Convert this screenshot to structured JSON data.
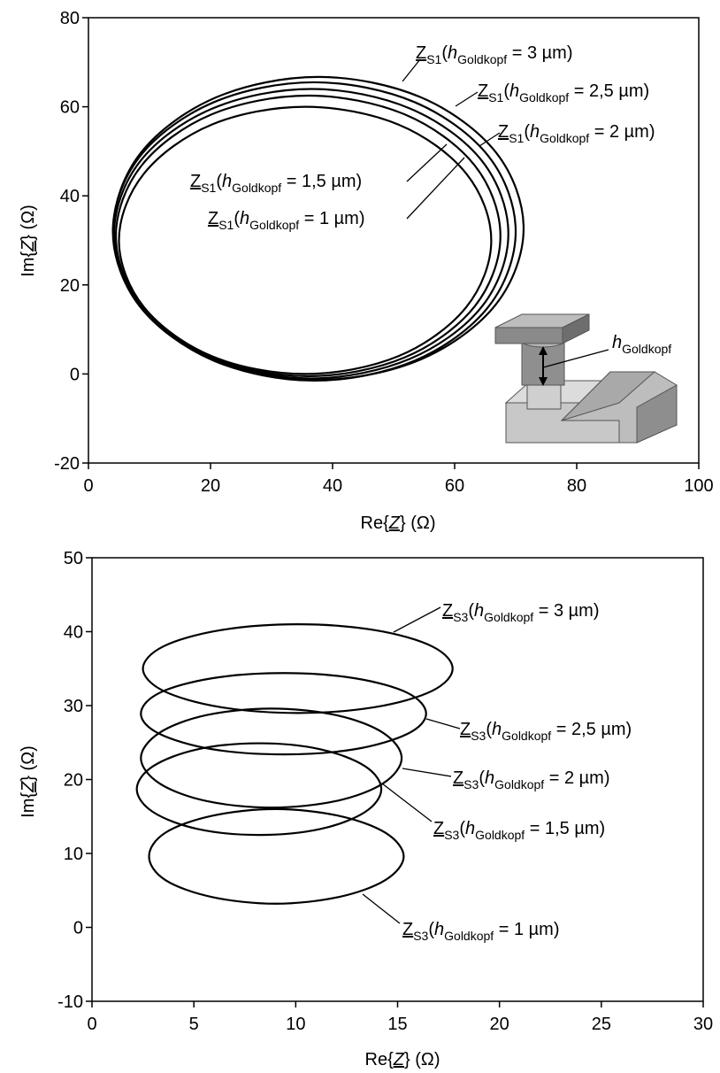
{
  "chart_data": [
    {
      "type": "line",
      "x_label": [
        "Re{",
        "Z",
        "}  (Ω)"
      ],
      "y_label": [
        "Im{",
        "Z",
        "}  (Ω)"
      ],
      "xlim": [
        0,
        100
      ],
      "ylim": [
        -20,
        80
      ],
      "xticks": [
        0,
        20,
        40,
        60,
        80,
        100
      ],
      "yticks": [
        -20,
        0,
        20,
        40,
        60,
        80
      ],
      "inset_label": [
        "h",
        "Goldkopf"
      ],
      "series": [
        {
          "name": [
            "Z",
            "S1",
            "(",
            "h",
            "Goldkopf",
            " = 3 µm)"
          ],
          "color": "#000000",
          "x": [
            71.3,
            66.8,
            54.5,
            37.7,
            20.9,
            8.6,
            4.1,
            8.6,
            20.9,
            37.7,
            54.5,
            66.8
          ],
          "values": [
            32.7,
            49.7,
            62.1,
            66.7,
            62.1,
            49.7,
            32.7,
            15.7,
            3.3,
            -1.3,
            3.3,
            15.7
          ]
        },
        {
          "name": [
            "Z",
            "S1",
            "(",
            "h",
            "Goldkopf",
            " = 2,5 µm)"
          ],
          "color": "#000000",
          "x": [
            70,
            65.6,
            53.5,
            37,
            20.5,
            8.4,
            4,
            8.4,
            20.5,
            37,
            53.5,
            65.6
          ],
          "values": [
            32,
            48.8,
            61,
            65.5,
            61,
            48.8,
            32,
            15.2,
            3,
            -1.5,
            3,
            15.2
          ]
        },
        {
          "name": [
            "Z",
            "S1",
            "(",
            "h",
            "Goldkopf",
            " = 2 µm)"
          ],
          "color": "#000000",
          "x": [
            68.8,
            64.5,
            52.7,
            36.5,
            20.3,
            8.5,
            4.2,
            8.5,
            20.3,
            36.5,
            52.7,
            64.5
          ],
          "values": [
            31.5,
            47.8,
            59.6,
            64,
            59.6,
            47.8,
            31.5,
            15.2,
            3.4,
            -1,
            3.4,
            15.2
          ]
        },
        {
          "name": [
            "Z",
            "S1",
            "(",
            "h",
            "Goldkopf",
            " = 1,5 µm)"
          ],
          "color": "#000000",
          "x": [
            67.5,
            63.3,
            51.8,
            36,
            20.2,
            8.7,
            4.5,
            8.7,
            20.2,
            36,
            51.8,
            63.3
          ],
          "values": [
            31,
            46.8,
            58.3,
            62.5,
            58.3,
            46.8,
            31,
            15.2,
            3.7,
            -0.5,
            3.7,
            15.2
          ]
        },
        {
          "name": [
            "Z",
            "S1",
            "(",
            "h",
            "Goldkopf",
            " = 1 µm)"
          ],
          "color": "#000000",
          "x": [
            66,
            61.9,
            50.8,
            35.5,
            20.2,
            9.1,
            5,
            9.1,
            20.2,
            35.5,
            50.8,
            61.9
          ],
          "values": [
            30,
            45,
            56,
            60,
            56,
            45,
            30,
            15,
            4,
            0,
            4,
            15
          ]
        }
      ]
    },
    {
      "type": "line",
      "x_label": [
        "Re{",
        "Z",
        "}  (Ω)"
      ],
      "y_label": [
        "Im{",
        "Z",
        "}  (Ω)"
      ],
      "xlim": [
        0,
        30
      ],
      "ylim": [
        -10,
        50
      ],
      "xticks": [
        0,
        5,
        10,
        15,
        20,
        25,
        30
      ],
      "yticks": [
        -10,
        0,
        10,
        20,
        30,
        40,
        50
      ],
      "series": [
        {
          "name": [
            "Z",
            "S3",
            "(",
            "h",
            "Goldkopf",
            " = 3 µm)"
          ],
          "color": "#000000",
          "x": [
            17.7,
            16.7,
            13.9,
            10.1,
            6.3,
            3.5,
            2.5,
            3.5,
            6.3,
            10.1,
            13.9,
            16.7
          ],
          "values": [
            35,
            38,
            40.2,
            41,
            40.2,
            38,
            35,
            32,
            29.8,
            29,
            29.8,
            32
          ]
        },
        {
          "name": [
            "Z",
            "S3",
            "(",
            "h",
            "Goldkopf",
            " = 2,5 µm)"
          ],
          "color": "#000000",
          "x": [
            16.4,
            15.5,
            12.9,
            9.4,
            5.9,
            3.3,
            2.4,
            3.3,
            5.9,
            9.4,
            12.9,
            15.5
          ],
          "values": [
            28.9,
            31.7,
            33.7,
            34.4,
            33.7,
            31.7,
            28.9,
            26.2,
            24.1,
            23.4,
            24.1,
            26.2
          ]
        },
        {
          "name": [
            "Z",
            "S3",
            "(",
            "h",
            "Goldkopf",
            " = 2 µm)"
          ],
          "color": "#000000",
          "x": [
            15.2,
            14.3,
            12,
            8.8,
            5.6,
            3.3,
            2.4,
            3.3,
            5.6,
            8.8,
            12,
            14.3
          ],
          "values": [
            22.9,
            26.3,
            28.7,
            29.6,
            28.7,
            26.3,
            22.9,
            19.5,
            17.1,
            16.2,
            17.1,
            19.5
          ]
        },
        {
          "name": [
            "Z",
            "S3",
            "(",
            "h",
            "Goldkopf",
            " = 1,5 µm)"
          ],
          "color": "#000000",
          "x": [
            14.2,
            13.4,
            11.2,
            8.2,
            5.2,
            3,
            2.2,
            3,
            5.2,
            8.2,
            11.2,
            13.4
          ],
          "values": [
            18.7,
            21.8,
            24.1,
            24.9,
            24.1,
            21.8,
            18.7,
            15.6,
            13.3,
            12.5,
            13.3,
            15.6
          ]
        },
        {
          "name": [
            "Z",
            "S3",
            "(",
            "h",
            "Goldkopf",
            " = 1 µm)"
          ],
          "color": "#000000",
          "x": [
            15.3,
            14.4,
            12.1,
            9,
            5.9,
            3.6,
            2.8,
            3.6,
            5.9,
            9,
            12.1,
            14.4
          ],
          "values": [
            9.6,
            12.8,
            15.1,
            16,
            15.1,
            12.8,
            9.6,
            6.4,
            4.1,
            3.2,
            4.1,
            6.4
          ]
        }
      ]
    }
  ]
}
